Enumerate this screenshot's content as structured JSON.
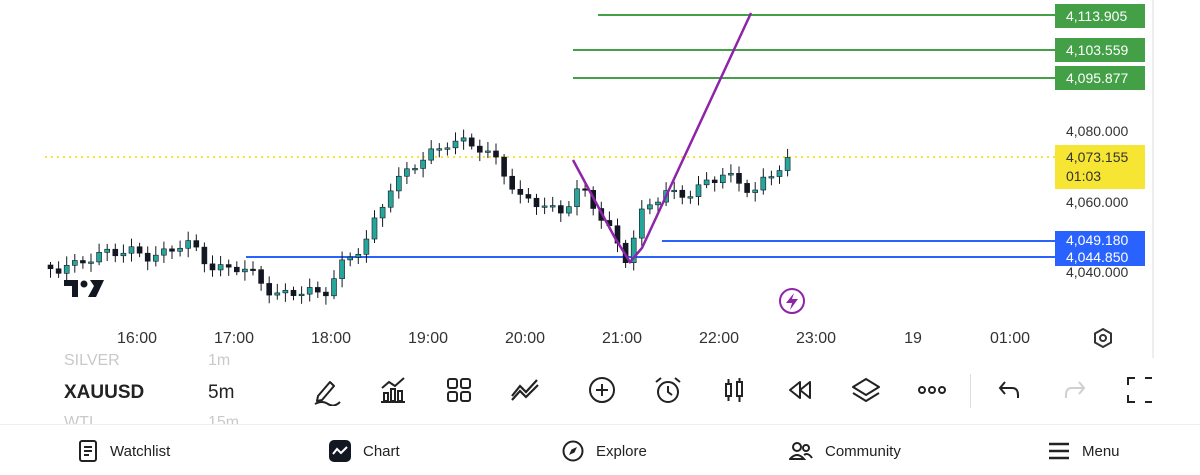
{
  "chart": {
    "y_axis_labels": [
      "4,080.000",
      "4,060.000",
      "4,040.000"
    ],
    "time_labels": [
      "16:00",
      "17:00",
      "18:00",
      "19:00",
      "20:00",
      "21:00",
      "22:00",
      "23:00",
      "19",
      "01:00"
    ],
    "green_levels": [
      {
        "price": "4,113.905"
      },
      {
        "price": "4,103.559"
      },
      {
        "price": "4,095.877"
      }
    ],
    "blue_levels": [
      {
        "price": "4,049.180"
      },
      {
        "price": "4,044.850"
      }
    ],
    "current": {
      "price": "4,073.155",
      "countdown": "01:03"
    },
    "logo": "TradingView logo",
    "colors": {
      "up": "#26a69a",
      "down": "#131722",
      "green_line": "#43a047",
      "blue_line": "#2962ff",
      "trend": "#8e24aa",
      "current_line": "#f7e533"
    }
  },
  "symbols": {
    "above_symbol": "SILVER",
    "above_tf": "1m",
    "symbol": "XAUUSD",
    "timeframe": "5m",
    "below_symbol": "WTI",
    "below_tf": "15m"
  },
  "toolbar": {
    "icons": [
      "draw-icon",
      "indicators-icon",
      "layouts-icon",
      "compare-icon",
      "add-icon",
      "alert-icon",
      "candle-type-icon",
      "replay-icon",
      "layers-icon",
      "more-icon",
      "undo-icon",
      "redo-icon",
      "fullscreen-icon"
    ]
  },
  "nav": {
    "watchlist": "Watchlist",
    "chart": "Chart",
    "explore": "Explore",
    "community": "Community",
    "menu": "Menu"
  }
}
